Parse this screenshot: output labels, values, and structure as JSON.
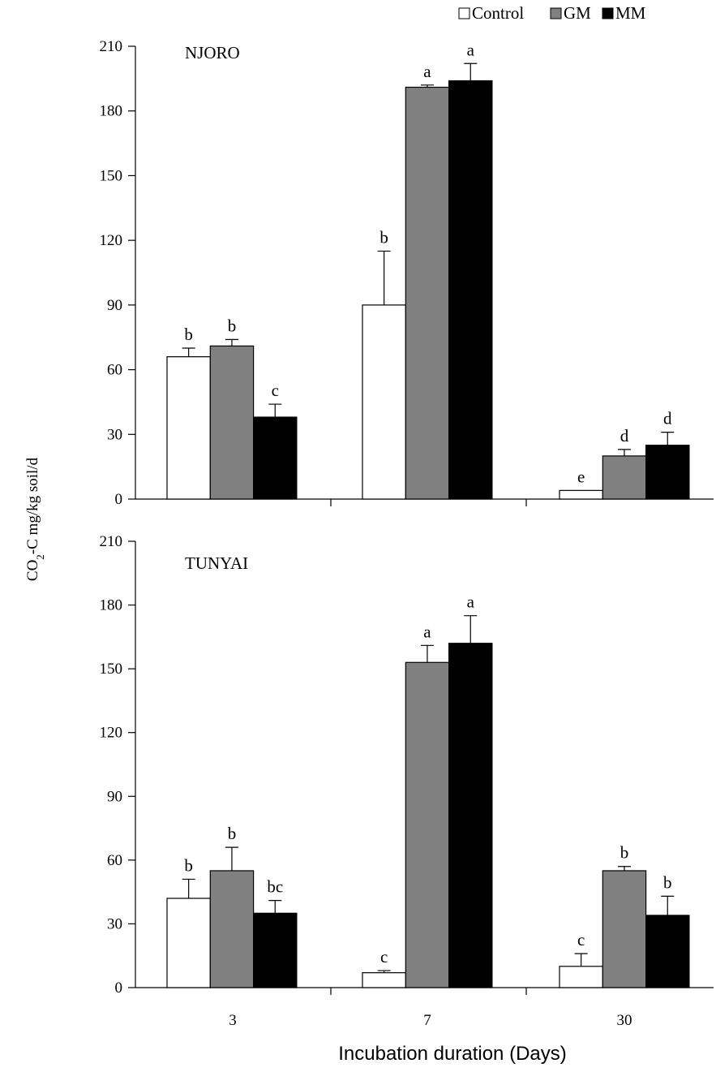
{
  "legend": [
    {
      "name": "Control",
      "color": "#ffffff"
    },
    {
      "name": "GM",
      "color": "#808080"
    },
    {
      "name": "MM",
      "color": "#000000"
    }
  ],
  "y_axis_label": {
    "base": "CO",
    "sub": "2",
    "rest": "-C mg/kg soil/d"
  },
  "x_axis_label": "Incubation duration (Days)",
  "chart_data": [
    {
      "type": "bar",
      "title": "NJORO",
      "categories": [
        "3",
        "7",
        "30"
      ],
      "ylim": [
        0,
        210
      ],
      "yticks": [
        0,
        30,
        60,
        90,
        120,
        150,
        180,
        210
      ],
      "series": [
        {
          "name": "Control",
          "color": "#ffffff",
          "values": [
            66,
            90,
            4
          ],
          "errors": [
            4,
            25,
            0
          ],
          "letters": [
            "b",
            "b",
            "e"
          ]
        },
        {
          "name": "GM",
          "color": "#808080",
          "values": [
            71,
            191,
            20
          ],
          "errors": [
            3,
            1,
            3
          ],
          "letters": [
            "b",
            "a",
            "d"
          ]
        },
        {
          "name": "MM",
          "color": "#000000",
          "values": [
            38,
            194,
            25
          ],
          "errors": [
            6,
            8,
            6
          ],
          "letters": [
            "c",
            "a",
            "d"
          ]
        }
      ]
    },
    {
      "type": "bar",
      "title": "TUNYAI",
      "categories": [
        "3",
        "7",
        "30"
      ],
      "ylim": [
        0,
        210
      ],
      "yticks": [
        0,
        30,
        60,
        90,
        120,
        150,
        180,
        210
      ],
      "series": [
        {
          "name": "Control",
          "color": "#ffffff",
          "values": [
            42,
            7,
            10
          ],
          "errors": [
            9,
            1,
            6
          ],
          "letters": [
            "b",
            "c",
            "c"
          ]
        },
        {
          "name": "GM",
          "color": "#808080",
          "values": [
            55,
            153,
            55
          ],
          "errors": [
            11,
            8,
            2
          ],
          "letters": [
            "b",
            "a",
            "b"
          ]
        },
        {
          "name": "MM",
          "color": "#000000",
          "values": [
            35,
            162,
            34
          ],
          "errors": [
            6,
            13,
            9
          ],
          "letters": [
            "bc",
            "a",
            "b"
          ]
        }
      ]
    }
  ]
}
